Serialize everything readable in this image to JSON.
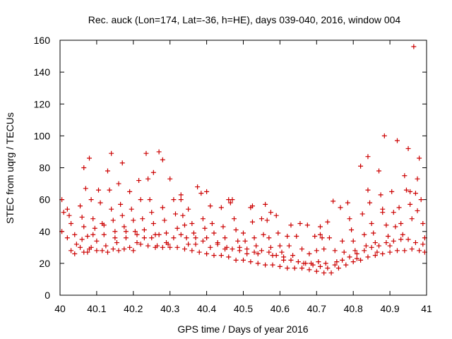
{
  "chart_data": {
    "type": "scatter",
    "title": "Rec. auck (Lon=174, Lat=-36, h=HE), days 039-040, 2016, window 004",
    "xlabel": "GPS time / Days of year 2016",
    "ylabel": "STEC from uqrg / TECUs",
    "xlim": [
      40,
      41
    ],
    "ylim": [
      0,
      160
    ],
    "x_ticks": [
      40,
      40.1,
      40.2,
      40.3,
      40.4,
      40.5,
      40.6,
      40.7,
      40.8,
      40.9,
      41
    ],
    "x_tick_labels": [
      "40",
      "40.1",
      "40.2",
      "40.3",
      "40.4",
      "40.5",
      "40.6",
      "40.7",
      "40.8",
      "40.9",
      "41"
    ],
    "y_ticks": [
      0,
      20,
      40,
      60,
      80,
      100,
      120,
      140,
      160
    ],
    "y_tick_labels": [
      "0",
      "20",
      "40",
      "60",
      "80",
      "100",
      "120",
      "140",
      "160"
    ],
    "grid": false,
    "marker": "+",
    "marker_color": "#cc0000",
    "series": [
      {
        "name": "STEC",
        "points": [
          [
            40.005,
            60
          ],
          [
            40.02,
            54
          ],
          [
            40.03,
            45
          ],
          [
            40.04,
            38
          ],
          [
            40.045,
            32
          ],
          [
            40.055,
            56
          ],
          [
            40.06,
            49
          ],
          [
            40.065,
            43
          ],
          [
            40.07,
            67
          ],
          [
            40.075,
            37
          ],
          [
            40.08,
            29
          ],
          [
            40.085,
            60
          ],
          [
            40.09,
            48
          ],
          [
            40.095,
            42
          ],
          [
            40.1,
            34
          ],
          [
            40.105,
            66
          ],
          [
            40.11,
            58
          ],
          [
            40.115,
            45
          ],
          [
            40.12,
            38
          ],
          [
            40.125,
            31
          ],
          [
            40.13,
            78
          ],
          [
            40.135,
            66
          ],
          [
            40.14,
            54
          ],
          [
            40.145,
            47
          ],
          [
            40.15,
            40
          ],
          [
            40.155,
            33
          ],
          [
            40.16,
            70
          ],
          [
            40.165,
            57
          ],
          [
            40.17,
            50
          ],
          [
            40.175,
            43
          ],
          [
            40.18,
            36
          ],
          [
            40.19,
            65
          ],
          [
            40.195,
            54
          ],
          [
            40.2,
            47
          ],
          [
            40.205,
            40
          ],
          [
            40.21,
            33
          ],
          [
            40.215,
            72
          ],
          [
            40.22,
            60
          ],
          [
            40.225,
            48
          ],
          [
            40.23,
            41
          ],
          [
            40.235,
            89
          ],
          [
            40.24,
            73
          ],
          [
            40.245,
            60
          ],
          [
            40.25,
            52
          ],
          [
            40.255,
            45
          ],
          [
            40.26,
            38
          ],
          [
            40.265,
            31
          ],
          [
            40.27,
            90
          ],
          [
            40.28,
            55
          ],
          [
            40.285,
            47
          ],
          [
            40.29,
            39
          ],
          [
            40.295,
            32
          ],
          [
            40.3,
            73
          ],
          [
            40.31,
            60
          ],
          [
            40.315,
            51
          ],
          [
            40.32,
            42
          ],
          [
            40.33,
            60
          ],
          [
            40.335,
            50
          ],
          [
            40.34,
            44
          ],
          [
            40.345,
            36
          ],
          [
            40.35,
            54
          ],
          [
            40.36,
            45
          ],
          [
            40.365,
            39
          ],
          [
            40.37,
            32
          ],
          [
            40.375,
            68
          ],
          [
            40.385,
            64
          ],
          [
            40.39,
            48
          ],
          [
            40.395,
            42
          ],
          [
            40.4,
            36
          ],
          [
            40.41,
            56
          ],
          [
            40.415,
            45
          ],
          [
            40.42,
            39
          ],
          [
            40.43,
            33
          ],
          [
            40.44,
            55
          ],
          [
            40.445,
            43
          ],
          [
            40.45,
            36
          ],
          [
            40.455,
            30
          ],
          [
            40.46,
            60
          ],
          [
            40.47,
            60
          ],
          [
            40.475,
            48
          ],
          [
            40.48,
            41
          ],
          [
            40.485,
            34
          ],
          [
            40.49,
            30
          ],
          [
            40.5,
            39
          ],
          [
            40.505,
            34
          ],
          [
            40.51,
            29
          ],
          [
            40.52,
            55
          ],
          [
            40.525,
            46
          ],
          [
            40.53,
            36
          ],
          [
            40.535,
            31
          ],
          [
            40.54,
            26
          ],
          [
            40.55,
            48
          ],
          [
            40.555,
            38
          ],
          [
            40.56,
            57
          ],
          [
            40.565,
            47
          ],
          [
            40.57,
            36
          ],
          [
            40.575,
            30
          ],
          [
            40.58,
            25
          ],
          [
            40.59,
            50
          ],
          [
            40.595,
            39
          ],
          [
            40.6,
            31
          ],
          [
            40.605,
            27
          ],
          [
            40.61,
            22
          ],
          [
            40.62,
            37
          ],
          [
            40.625,
            31
          ],
          [
            40.635,
            25
          ],
          [
            40.645,
            37
          ],
          [
            40.655,
            45
          ],
          [
            40.66,
            29
          ],
          [
            40.665,
            20
          ],
          [
            40.675,
            44
          ],
          [
            40.68,
            26
          ],
          [
            40.685,
            20
          ],
          [
            40.695,
            37
          ],
          [
            40.7,
            28
          ],
          [
            40.705,
            21
          ],
          [
            40.71,
            43
          ],
          [
            40.715,
            36
          ],
          [
            40.72,
            29
          ],
          [
            40.725,
            20
          ],
          [
            40.73,
            46
          ],
          [
            40.735,
            36
          ],
          [
            40.745,
            59
          ],
          [
            40.75,
            28
          ],
          [
            40.755,
            21
          ],
          [
            40.765,
            55
          ],
          [
            40.77,
            34
          ],
          [
            40.775,
            27
          ],
          [
            40.785,
            58
          ],
          [
            40.79,
            48
          ],
          [
            40.795,
            41
          ],
          [
            40.8,
            34
          ],
          [
            40.805,
            28
          ],
          [
            40.81,
            23
          ],
          [
            40.82,
            81
          ],
          [
            40.825,
            51
          ],
          [
            40.83,
            38
          ],
          [
            40.835,
            31
          ],
          [
            40.84,
            66
          ],
          [
            40.845,
            58
          ],
          [
            40.85,
            45
          ],
          [
            40.855,
            39
          ],
          [
            40.86,
            33
          ],
          [
            40.865,
            27
          ],
          [
            40.87,
            78
          ],
          [
            40.875,
            63
          ],
          [
            40.88,
            52
          ],
          [
            40.885,
            100
          ],
          [
            40.89,
            44
          ],
          [
            40.895,
            37
          ],
          [
            40.9,
            31
          ],
          [
            40.905,
            65
          ],
          [
            40.91,
            52
          ],
          [
            40.915,
            43
          ],
          [
            40.92,
            97
          ],
          [
            40.925,
            55
          ],
          [
            40.93,
            45
          ],
          [
            40.935,
            38
          ],
          [
            40.94,
            75
          ],
          [
            40.945,
            66
          ],
          [
            40.95,
            92
          ],
          [
            40.955,
            57
          ],
          [
            40.96,
            48
          ],
          [
            40.965,
            156
          ],
          [
            40.97,
            64
          ],
          [
            40.975,
            53
          ],
          [
            40.98,
            86
          ],
          [
            40.985,
            60
          ],
          [
            40.99,
            45
          ],
          [
            40.995,
            36
          ],
          [
            40.005,
            40
          ],
          [
            40.02,
            36
          ],
          [
            40.03,
            28
          ],
          [
            40.04,
            26
          ],
          [
            40.055,
            30
          ],
          [
            40.065,
            27
          ],
          [
            40.075,
            27
          ],
          [
            40.085,
            30
          ],
          [
            40.1,
            28
          ],
          [
            40.115,
            28
          ],
          [
            40.13,
            27
          ],
          [
            40.145,
            29
          ],
          [
            40.16,
            28
          ],
          [
            40.175,
            29
          ],
          [
            40.19,
            30
          ],
          [
            40.2,
            28
          ],
          [
            40.22,
            32
          ],
          [
            40.24,
            31
          ],
          [
            40.26,
            30
          ],
          [
            40.28,
            30
          ],
          [
            40.3,
            30
          ],
          [
            40.32,
            30
          ],
          [
            40.34,
            29
          ],
          [
            40.36,
            28
          ],
          [
            40.38,
            27
          ],
          [
            40.4,
            26
          ],
          [
            40.42,
            25
          ],
          [
            40.44,
            25
          ],
          [
            40.46,
            24
          ],
          [
            40.48,
            22
          ],
          [
            40.5,
            22
          ],
          [
            40.52,
            21
          ],
          [
            40.54,
            20
          ],
          [
            40.56,
            19
          ],
          [
            40.58,
            19
          ],
          [
            40.6,
            18
          ],
          [
            40.62,
            17
          ],
          [
            40.64,
            17
          ],
          [
            40.66,
            17
          ],
          [
            40.68,
            16
          ],
          [
            40.7,
            15
          ],
          [
            40.72,
            14
          ],
          [
            40.74,
            14
          ],
          [
            40.76,
            17
          ],
          [
            40.78,
            19
          ],
          [
            40.8,
            21
          ],
          [
            40.82,
            22
          ],
          [
            40.84,
            24
          ],
          [
            40.86,
            25
          ],
          [
            40.88,
            26
          ],
          [
            40.9,
            27
          ],
          [
            40.92,
            28
          ],
          [
            40.94,
            28
          ],
          [
            40.96,
            29
          ],
          [
            40.98,
            28
          ],
          [
            40.995,
            27
          ],
          [
            40.01,
            52
          ],
          [
            40.025,
            50
          ],
          [
            40.06,
            35
          ],
          [
            40.09,
            38
          ],
          [
            40.12,
            44
          ],
          [
            40.15,
            36
          ],
          [
            40.18,
            40
          ],
          [
            40.21,
            38
          ],
          [
            40.23,
            36
          ],
          [
            40.25,
            36
          ],
          [
            40.27,
            38
          ],
          [
            40.29,
            33
          ],
          [
            40.31,
            36
          ],
          [
            40.33,
            38
          ],
          [
            40.35,
            32
          ],
          [
            40.37,
            36
          ],
          [
            40.39,
            34
          ],
          [
            40.41,
            30
          ],
          [
            40.43,
            32
          ],
          [
            40.45,
            29
          ],
          [
            40.47,
            29
          ],
          [
            40.49,
            28
          ],
          [
            40.51,
            26
          ],
          [
            40.53,
            27
          ],
          [
            40.55,
            28
          ],
          [
            40.57,
            27
          ],
          [
            40.59,
            25
          ],
          [
            40.61,
            24
          ],
          [
            40.63,
            22
          ],
          [
            40.65,
            21
          ],
          [
            40.67,
            20
          ],
          [
            40.69,
            19
          ],
          [
            40.71,
            18
          ],
          [
            40.73,
            17
          ],
          [
            40.75,
            19
          ],
          [
            40.77,
            22
          ],
          [
            40.79,
            24
          ],
          [
            40.81,
            26
          ],
          [
            40.83,
            28
          ],
          [
            40.85,
            30
          ],
          [
            40.87,
            31
          ],
          [
            40.89,
            33
          ],
          [
            40.91,
            34
          ],
          [
            40.93,
            35
          ],
          [
            40.95,
            35
          ],
          [
            40.97,
            33
          ],
          [
            40.99,
            32
          ],
          [
            40.065,
            80
          ],
          [
            40.08,
            86
          ],
          [
            40.14,
            89
          ],
          [
            40.17,
            83
          ],
          [
            40.255,
            77
          ],
          [
            40.28,
            85
          ],
          [
            40.33,
            63
          ],
          [
            40.4,
            65
          ],
          [
            40.465,
            58
          ],
          [
            40.525,
            56
          ],
          [
            40.575,
            52
          ],
          [
            40.63,
            44
          ],
          [
            40.71,
            38
          ],
          [
            40.84,
            87
          ],
          [
            40.88,
            54
          ],
          [
            40.955,
            65
          ],
          [
            40.975,
            73
          ]
        ]
      }
    ]
  }
}
